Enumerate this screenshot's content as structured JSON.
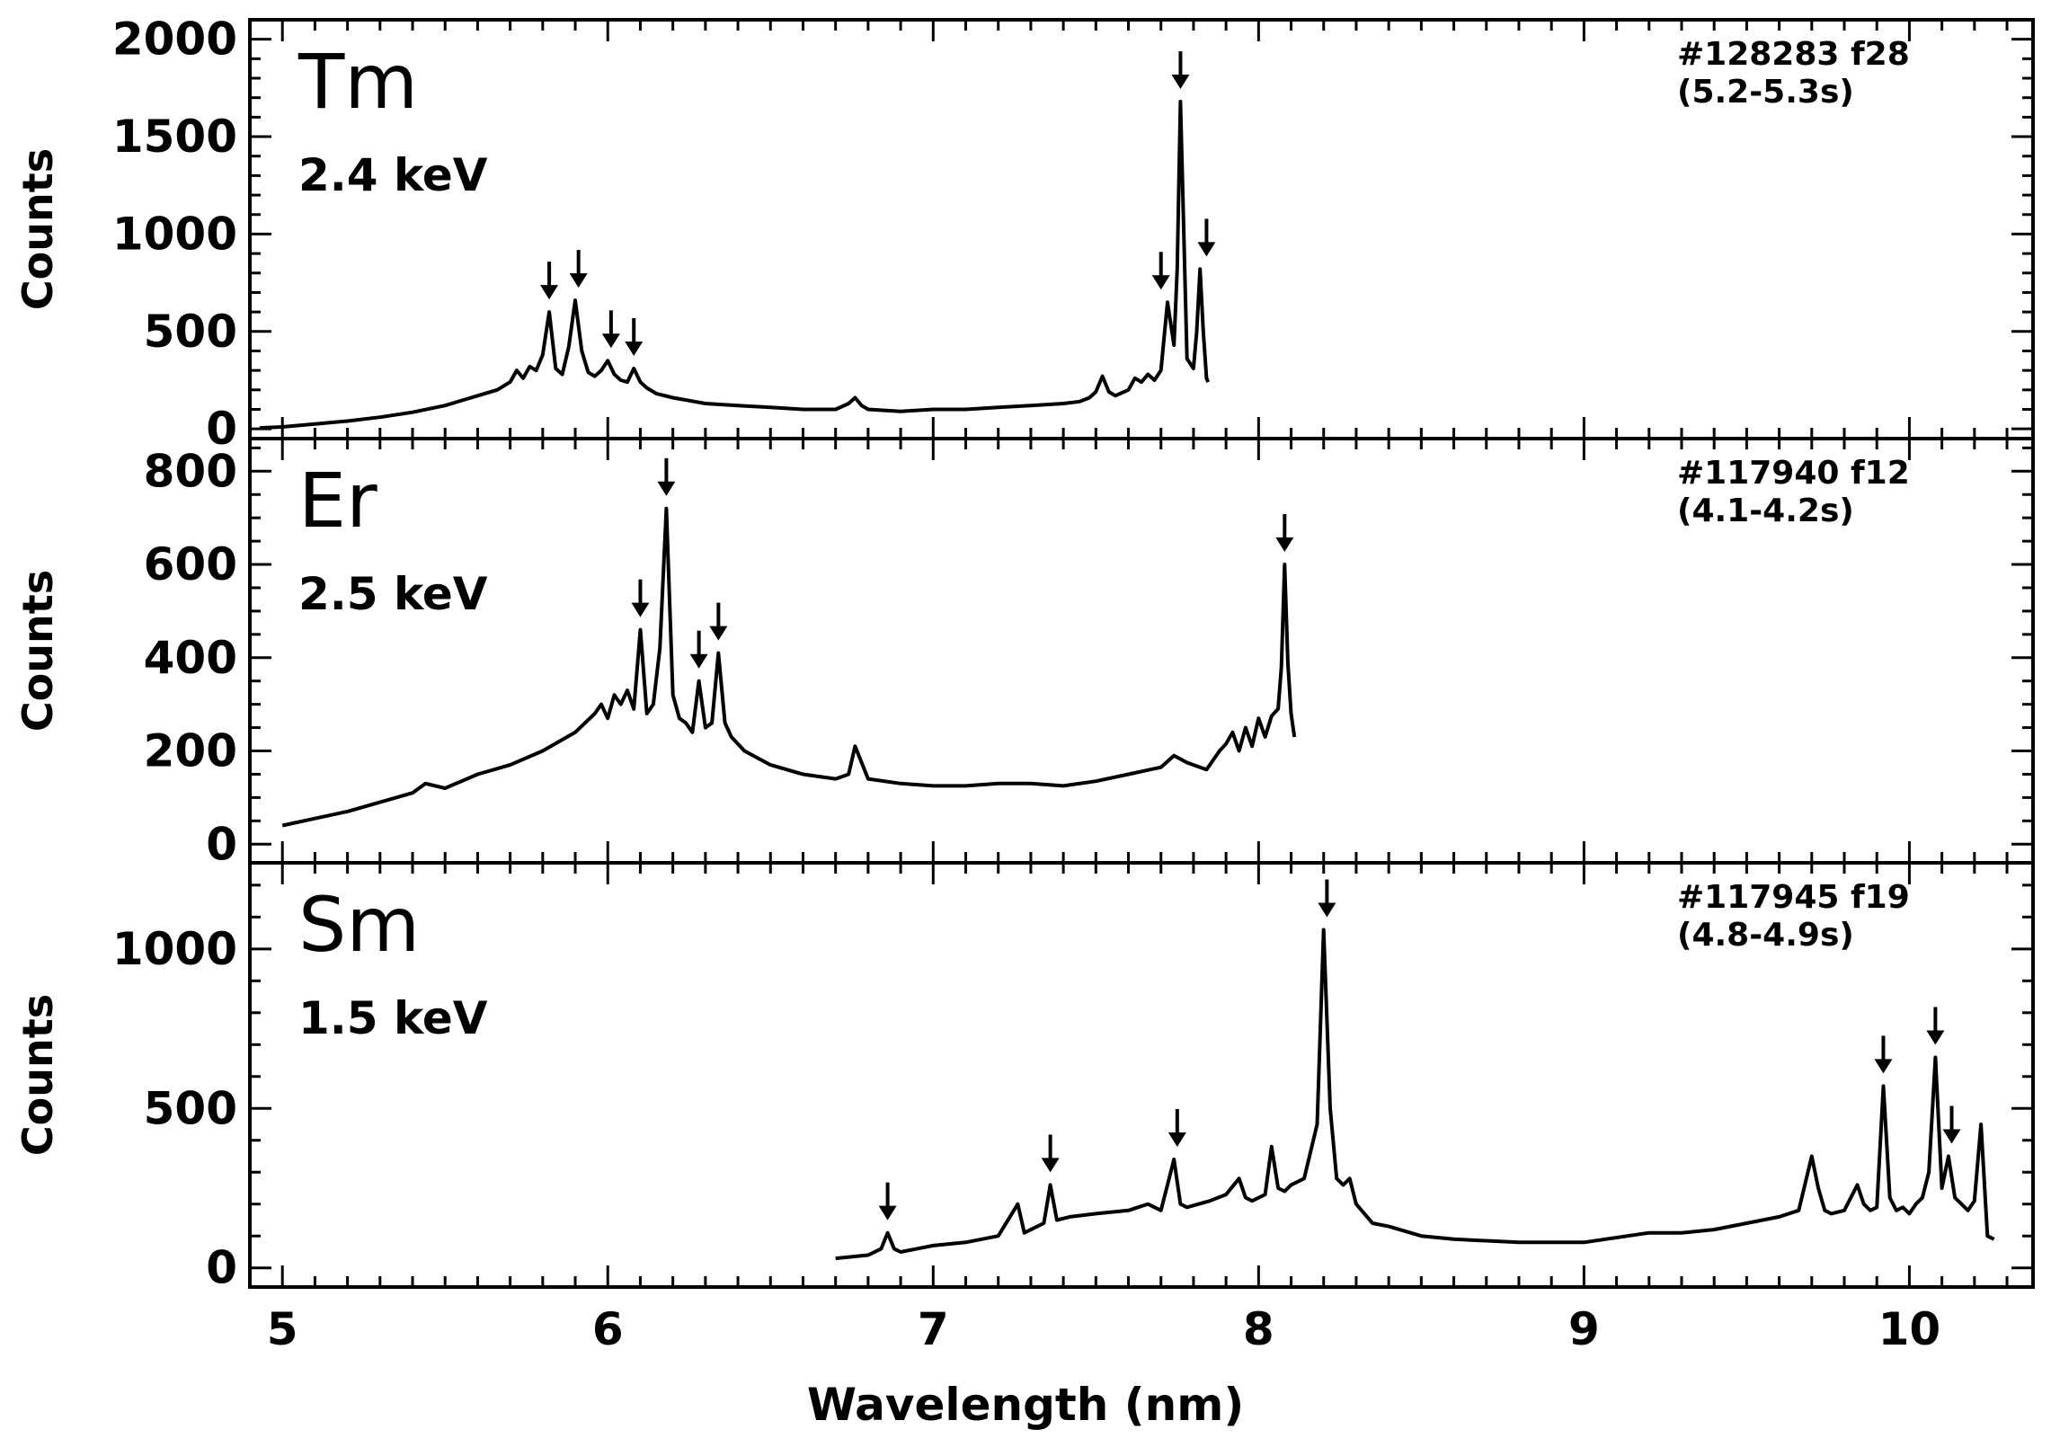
{
  "chart_data": [
    {
      "type": "line",
      "element": "Tm",
      "energy": "2.4 keV",
      "shot": "#128283 f28",
      "time_window": "(5.2-5.3s)",
      "ylabel": "Counts",
      "xlim": [
        4.9,
        10.38
      ],
      "ylim": [
        -50,
        2100
      ],
      "yticks": [
        0,
        500,
        1000,
        1500,
        2000
      ],
      "ytick_labels": [
        "0",
        "500",
        "1000",
        "1500",
        "2000"
      ],
      "y_minor_step": 100,
      "series": [
        {
          "x": [
            4.93,
            5.0,
            5.1,
            5.2,
            5.3,
            5.4,
            5.5,
            5.6,
            5.66,
            5.7,
            5.72,
            5.74,
            5.76,
            5.78,
            5.8,
            5.82,
            5.84,
            5.86,
            5.88,
            5.9,
            5.92,
            5.94,
            5.96,
            5.98,
            6.0,
            6.02,
            6.04,
            6.06,
            6.08,
            6.1,
            6.12,
            6.15,
            6.2,
            6.3,
            6.4,
            6.5,
            6.6,
            6.7,
            6.74,
            6.76,
            6.78,
            6.8,
            6.9,
            7.0,
            7.1,
            7.2,
            7.3,
            7.4,
            7.45,
            7.48,
            7.5,
            7.52,
            7.54,
            7.56,
            7.6,
            7.62,
            7.64,
            7.66,
            7.68,
            7.7,
            7.72,
            7.74,
            7.75,
            7.76,
            7.78,
            7.8,
            7.81,
            7.82,
            7.83,
            7.84,
            7.845
          ],
          "y": [
            5,
            10,
            25,
            40,
            60,
            85,
            120,
            170,
            200,
            240,
            300,
            260,
            320,
            300,
            380,
            600,
            310,
            280,
            420,
            660,
            400,
            290,
            270,
            300,
            350,
            280,
            250,
            240,
            310,
            240,
            210,
            180,
            160,
            130,
            120,
            110,
            100,
            100,
            130,
            160,
            120,
            100,
            90,
            100,
            100,
            110,
            120,
            130,
            140,
            160,
            190,
            270,
            190,
            170,
            200,
            260,
            240,
            280,
            250,
            300,
            650,
            430,
            820,
            1680,
            360,
            310,
            500,
            820,
            500,
            260,
            240
          ]
        }
      ],
      "arrows_x": [
        5.82,
        5.91,
        6.01,
        6.08,
        7.7,
        7.76,
        7.84
      ]
    },
    {
      "type": "line",
      "element": "Er",
      "energy": "2.5 keV",
      "shot": "#117940 f12",
      "time_window": "(4.1-4.2s)",
      "ylabel": "Counts",
      "xlim": [
        4.9,
        10.38
      ],
      "ylim": [
        -40,
        870
      ],
      "yticks": [
        0,
        200,
        400,
        600,
        800
      ],
      "ytick_labels": [
        "0",
        "200",
        "400",
        "600",
        "800"
      ],
      "y_minor_step": 50,
      "series": [
        {
          "x": [
            5.0,
            5.1,
            5.2,
            5.3,
            5.4,
            5.44,
            5.5,
            5.6,
            5.7,
            5.8,
            5.9,
            5.96,
            5.98,
            6.0,
            6.02,
            6.04,
            6.06,
            6.08,
            6.1,
            6.12,
            6.14,
            6.16,
            6.18,
            6.2,
            6.22,
            6.24,
            6.26,
            6.28,
            6.3,
            6.32,
            6.34,
            6.36,
            6.38,
            6.42,
            6.5,
            6.6,
            6.7,
            6.74,
            6.76,
            6.8,
            6.9,
            7.0,
            7.1,
            7.2,
            7.3,
            7.4,
            7.5,
            7.6,
            7.7,
            7.74,
            7.78,
            7.8,
            7.84,
            7.88,
            7.9,
            7.92,
            7.94,
            7.96,
            7.98,
            8.0,
            8.02,
            8.04,
            8.06,
            8.07,
            8.08,
            8.09,
            8.1,
            8.11
          ],
          "y": [
            40,
            55,
            70,
            90,
            110,
            130,
            120,
            150,
            170,
            200,
            240,
            280,
            300,
            270,
            320,
            300,
            330,
            290,
            460,
            280,
            300,
            420,
            720,
            320,
            270,
            260,
            240,
            350,
            250,
            260,
            410,
            260,
            230,
            200,
            170,
            150,
            140,
            150,
            210,
            140,
            130,
            125,
            125,
            130,
            130,
            125,
            135,
            150,
            165,
            190,
            175,
            170,
            160,
            200,
            215,
            240,
            200,
            250,
            210,
            270,
            230,
            275,
            290,
            380,
            600,
            390,
            280,
            230
          ]
        }
      ],
      "arrows_x": [
        6.1,
        6.18,
        6.28,
        6.34,
        8.08
      ]
    },
    {
      "type": "line",
      "element": "Sm",
      "energy": "1.5 keV",
      "shot": "#117945 f19",
      "time_window": "(4.8-4.9s)",
      "ylabel": "Counts",
      "xlim": [
        4.9,
        10.38
      ],
      "ylim": [
        -60,
        1270
      ],
      "yticks": [
        0,
        500,
        1000
      ],
      "ytick_labels": [
        "0",
        "500",
        "1000"
      ],
      "y_minor_step": 100,
      "series": [
        {
          "x": [
            6.7,
            6.8,
            6.84,
            6.86,
            6.88,
            6.9,
            7.0,
            7.1,
            7.2,
            7.26,
            7.28,
            7.3,
            7.34,
            7.36,
            7.38,
            7.42,
            7.5,
            7.6,
            7.66,
            7.7,
            7.72,
            7.74,
            7.76,
            7.78,
            7.85,
            7.9,
            7.94,
            7.96,
            7.98,
            8.02,
            8.04,
            8.06,
            8.08,
            8.1,
            8.14,
            8.18,
            8.2,
            8.22,
            8.24,
            8.26,
            8.28,
            8.3,
            8.35,
            8.4,
            8.5,
            8.6,
            8.8,
            9.0,
            9.2,
            9.3,
            9.4,
            9.5,
            9.6,
            9.66,
            9.7,
            9.72,
            9.74,
            9.76,
            9.8,
            9.84,
            9.86,
            9.88,
            9.9,
            9.92,
            9.94,
            9.96,
            9.98,
            10.0,
            10.02,
            10.04,
            10.06,
            10.08,
            10.1,
            10.12,
            10.14,
            10.16,
            10.18,
            10.2,
            10.22,
            10.24,
            10.26
          ],
          "y": [
            30,
            40,
            60,
            110,
            60,
            50,
            70,
            80,
            100,
            200,
            110,
            120,
            140,
            260,
            150,
            160,
            170,
            180,
            200,
            180,
            260,
            340,
            200,
            190,
            210,
            230,
            280,
            220,
            210,
            230,
            380,
            250,
            240,
            260,
            280,
            450,
            1060,
            500,
            280,
            260,
            280,
            200,
            140,
            130,
            100,
            90,
            80,
            80,
            110,
            110,
            120,
            140,
            160,
            180,
            350,
            250,
            180,
            170,
            180,
            260,
            200,
            180,
            190,
            570,
            220,
            180,
            190,
            170,
            200,
            220,
            300,
            660,
            250,
            350,
            220,
            200,
            180,
            210,
            450,
            100,
            90
          ]
        }
      ],
      "arrows_x": [
        6.86,
        7.36,
        7.75,
        8.21,
        9.92,
        10.08,
        10.13
      ]
    }
  ],
  "xaxis": {
    "label": "Wavelength (nm)",
    "xlim": [
      4.9,
      10.38
    ],
    "ticks": [
      5,
      6,
      7,
      8,
      9,
      10
    ],
    "tick_labels": [
      "5",
      "6",
      "7",
      "8",
      "9",
      "10"
    ]
  },
  "colors": {
    "line": "#000000",
    "background": "#ffffff"
  }
}
